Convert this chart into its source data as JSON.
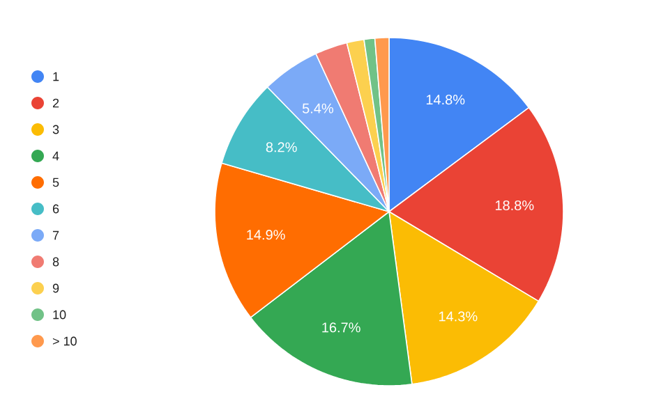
{
  "chart_data": {
    "type": "pie",
    "categories": [
      "1",
      "2",
      "3",
      "4",
      "5",
      "6",
      "7",
      "8",
      "9",
      "10",
      "> 10"
    ],
    "values": [
      14.8,
      18.8,
      14.3,
      16.7,
      14.9,
      8.2,
      5.4,
      3.0,
      1.6,
      1.0,
      1.3
    ],
    "value_labels": [
      "14.8%",
      "18.8%",
      "14.3%",
      "16.7%",
      "14.9%",
      "8.2%",
      "5.4%",
      null,
      null,
      null,
      null
    ],
    "colors": [
      "#4285f4",
      "#ea4335",
      "#fbbc04",
      "#34a853",
      "#ff6d01",
      "#46bdc6",
      "#7baaf7",
      "#f07b72",
      "#fcd04f",
      "#71c287",
      "#ff994d"
    ],
    "legend": "left"
  }
}
